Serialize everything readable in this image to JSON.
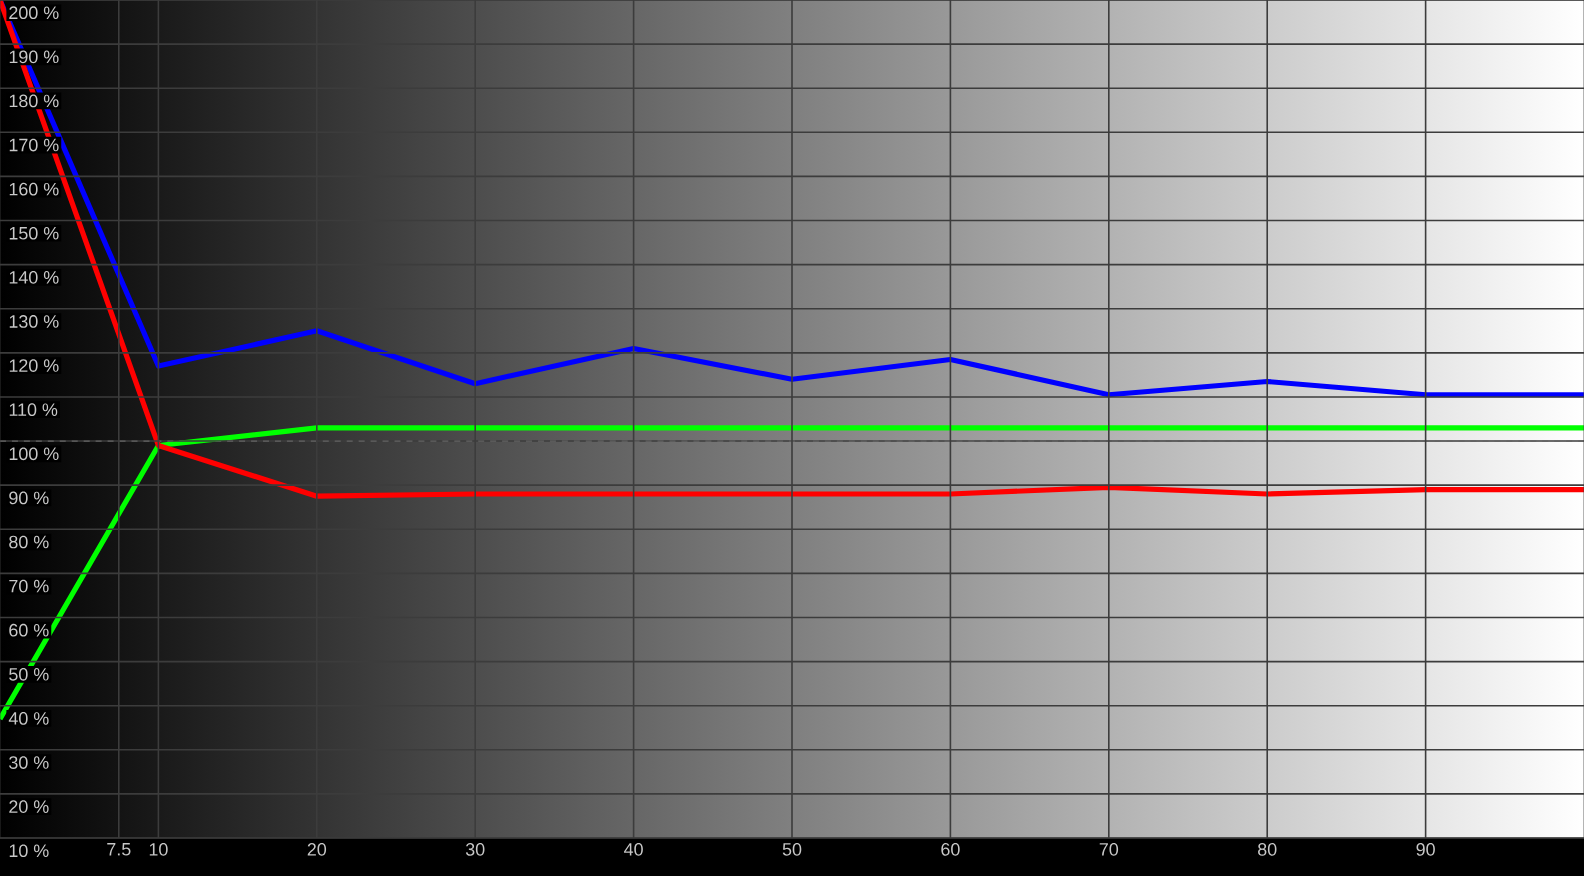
{
  "chart_data": {
    "type": "line",
    "x": [
      0,
      10,
      20,
      30,
      40,
      50,
      60,
      70,
      80,
      90,
      100
    ],
    "series": [
      {
        "color": "#0000ff",
        "values": [
          200,
          117,
          125,
          113,
          121,
          114,
          118.5,
          110.5,
          113.5,
          110.5,
          110.5
        ]
      },
      {
        "color": "#00ff00",
        "values": [
          37,
          99,
          103,
          103,
          103,
          103,
          103,
          103,
          103,
          103,
          103
        ]
      },
      {
        "color": "#ff0000",
        "values": [
          200,
          99,
          87.5,
          88,
          88,
          88,
          88,
          89.5,
          88,
          89,
          89
        ]
      }
    ],
    "xlim": [
      0,
      100
    ],
    "ylim": [
      10,
      200
    ],
    "xticks": [
      7.5,
      10,
      20,
      30,
      40,
      50,
      60,
      70,
      80,
      90
    ],
    "yticks": [
      {
        "value": 10,
        "label": "10 %"
      },
      {
        "value": 20,
        "label": "20 %"
      },
      {
        "value": 30,
        "label": "30 %"
      },
      {
        "value": 40,
        "label": "40 %"
      },
      {
        "value": 50,
        "label": "50 %"
      },
      {
        "value": 60,
        "label": "60 %"
      },
      {
        "value": 70,
        "label": "70 %"
      },
      {
        "value": 80,
        "label": "80 %"
      },
      {
        "value": 90,
        "label": "90 %"
      },
      {
        "value": 100,
        "label": "100 %"
      },
      {
        "value": 110,
        "label": "110 %"
      },
      {
        "value": 120,
        "label": "120 %"
      },
      {
        "value": 130,
        "label": "130 %"
      },
      {
        "value": 140,
        "label": "140 %"
      },
      {
        "value": 150,
        "label": "150 %"
      },
      {
        "value": 160,
        "label": "160 %"
      },
      {
        "value": 170,
        "label": "170 %"
      },
      {
        "value": 180,
        "label": "180 %"
      },
      {
        "value": 190,
        "label": "190 %"
      },
      {
        "value": 200,
        "label": "200 %"
      }
    ],
    "grid": true,
    "marker": "none",
    "line_style": "solid",
    "ref_lines": [
      {
        "axis": "y",
        "value": 100,
        "color": "#d8d8d8",
        "line_style": "dashed"
      }
    ]
  }
}
